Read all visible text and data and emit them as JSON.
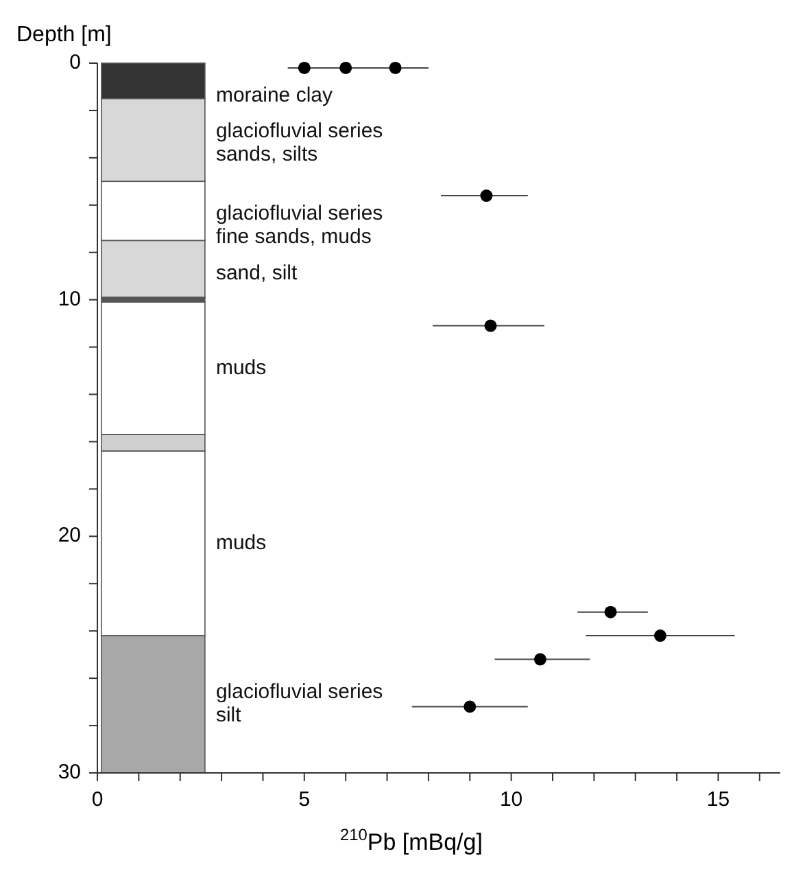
{
  "chart_data": {
    "type": "scatter",
    "xlabel": "$^{210}$Pb [mBq/g]",
    "ylabel": "Depth [m]",
    "x": [
      5.0,
      6.0,
      7.2,
      9.4,
      9.5,
      12.4,
      13.6,
      10.7,
      9.0
    ],
    "values": [
      0.2,
      0.2,
      0.2,
      5.6,
      11.1,
      23.2,
      24.2,
      25.2,
      27.2
    ],
    "xerrors": [
      [
        4.6,
        5.5
      ],
      [
        5.5,
        7.1
      ],
      [
        6.6,
        8.0
      ],
      [
        8.3,
        10.4
      ],
      [
        8.1,
        10.8
      ],
      [
        11.6,
        13.3
      ],
      [
        11.8,
        15.4
      ],
      [
        9.6,
        11.9
      ],
      [
        7.6,
        10.4
      ]
    ],
    "color": "#000000",
    "marker": "circle",
    "xlim": [
      0,
      16.5
    ],
    "ylim": [
      30,
      0
    ],
    "xticks": [
      0,
      {
        "value": 1,
        "label": null
      },
      {
        "value": 2,
        "label": null
      },
      {
        "value": 3,
        "label": null
      },
      {
        "value": 4,
        "label": null
      },
      5,
      {
        "value": 6,
        "label": null
      },
      {
        "value": 7,
        "label": null
      },
      {
        "value": 8,
        "label": null
      },
      {
        "value": 9,
        "label": null
      },
      10,
      {
        "value": 11,
        "label": null
      },
      {
        "value": 12,
        "label": null
      },
      {
        "value": 13,
        "label": null
      },
      {
        "value": 14,
        "label": null
      },
      15,
      {
        "value": 16,
        "label": null
      }
    ],
    "yticks": [
      0,
      {
        "value": 2,
        "label": null
      },
      {
        "value": 4,
        "label": null
      },
      {
        "value": 6,
        "label": null
      },
      {
        "value": 8,
        "label": null
      },
      10,
      {
        "value": 12,
        "label": null
      },
      {
        "value": 14,
        "label": null
      },
      {
        "value": 16,
        "label": null
      },
      {
        "value": 18,
        "label": null
      },
      20,
      {
        "value": 22,
        "label": null
      },
      {
        "value": 24,
        "label": null
      },
      {
        "value": 26,
        "label": null
      },
      {
        "value": 28,
        "label": null
      },
      30
    ],
    "bands": [
      {
        "axis": "y",
        "from": 0,
        "to": 1.5,
        "label": "moraine clay",
        "color": "#333333"
      },
      {
        "axis": "y",
        "from": 1.5,
        "to": 5.0,
        "label": "glaciofluvial series\nsands, silts",
        "color": "#d8d8d8"
      },
      {
        "axis": "y",
        "from": 5.0,
        "to": 7.5,
        "label": "glaciofluvial series\nfine sands, muds",
        "color": "#ffffff"
      },
      {
        "axis": "y",
        "from": 7.5,
        "to": 9.9,
        "label": "sand, silt",
        "color": "#d8d8d8"
      },
      {
        "axis": "y",
        "from": 9.9,
        "to": 10.1,
        "color": "#555555"
      },
      {
        "axis": "y",
        "from": 10.1,
        "to": 15.7,
        "label": "muds",
        "color": "#ffffff"
      },
      {
        "axis": "y",
        "from": 15.7,
        "to": 16.4,
        "color": "#d0d0d0"
      },
      {
        "axis": "y",
        "from": 16.4,
        "to": 24.2,
        "label": "muds",
        "color": "#ffffff"
      },
      {
        "axis": "y",
        "from": 24.2,
        "to": 30,
        "label": "glaciofluvial series\nsilt",
        "color": "#a8a8a8"
      }
    ]
  }
}
